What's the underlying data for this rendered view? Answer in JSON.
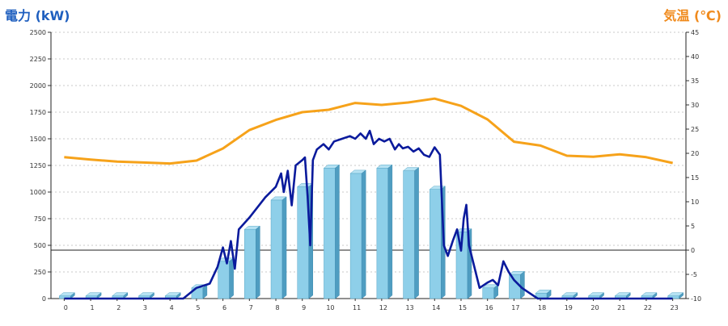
{
  "chart_data": {
    "type": "bar+line",
    "left_axis_label": "電力 (kW)",
    "right_axis_label": "気温 (℃)",
    "categories": [
      "0",
      "1",
      "2",
      "3",
      "4",
      "5",
      "6",
      "7",
      "8",
      "9",
      "10",
      "11",
      "12",
      "13",
      "14",
      "15",
      "16",
      "17",
      "18",
      "19",
      "20",
      "21",
      "22",
      "23"
    ],
    "y_left": {
      "min": 0,
      "max": 2500,
      "ticks": [
        0,
        250,
        500,
        750,
        1000,
        1250,
        1500,
        1750,
        2000,
        2250,
        2500
      ]
    },
    "y_right": {
      "min": -10,
      "max": 45,
      "ticks": [
        -10,
        -5,
        0,
        5,
        10,
        15,
        20,
        25,
        30,
        35,
        40,
        45
      ]
    },
    "bars": {
      "axis": "left",
      "color": "#8ecfe9",
      "values": [
        25,
        25,
        25,
        25,
        25,
        100,
        350,
        650,
        925,
        1050,
        1225,
        1175,
        1225,
        1200,
        1025,
        625,
        100,
        225,
        50,
        25,
        25,
        25,
        25,
        25
      ]
    },
    "power_line": {
      "axis": "left",
      "color": "#0a1a9c",
      "points": [
        [
          0,
          0
        ],
        [
          1,
          0
        ],
        [
          2,
          0
        ],
        [
          3,
          0
        ],
        [
          4,
          0
        ],
        [
          4.5,
          0
        ],
        [
          5,
          100
        ],
        [
          5.5,
          140
        ],
        [
          5.8,
          300
        ],
        [
          6,
          480
        ],
        [
          6.15,
          330
        ],
        [
          6.3,
          540
        ],
        [
          6.45,
          280
        ],
        [
          6.6,
          650
        ],
        [
          7,
          760
        ],
        [
          7.6,
          950
        ],
        [
          8,
          1050
        ],
        [
          8.2,
          1175
        ],
        [
          8.3,
          1000
        ],
        [
          8.45,
          1200
        ],
        [
          8.6,
          875
        ],
        [
          8.75,
          1250
        ],
        [
          9,
          1300
        ],
        [
          9.1,
          1325
        ],
        [
          9.2,
          960
        ],
        [
          9.3,
          500
        ],
        [
          9.4,
          1300
        ],
        [
          9.55,
          1400
        ],
        [
          9.8,
          1450
        ],
        [
          10,
          1400
        ],
        [
          10.2,
          1475
        ],
        [
          10.5,
          1500
        ],
        [
          10.8,
          1525
        ],
        [
          11,
          1500
        ],
        [
          11.2,
          1550
        ],
        [
          11.4,
          1500
        ],
        [
          11.55,
          1575
        ],
        [
          11.7,
          1450
        ],
        [
          11.9,
          1500
        ],
        [
          12.1,
          1475
        ],
        [
          12.3,
          1500
        ],
        [
          12.5,
          1400
        ],
        [
          12.65,
          1450
        ],
        [
          12.8,
          1410
        ],
        [
          13,
          1425
        ],
        [
          13.2,
          1380
        ],
        [
          13.4,
          1410
        ],
        [
          13.6,
          1350
        ],
        [
          13.8,
          1330
        ],
        [
          14,
          1420
        ],
        [
          14.2,
          1350
        ],
        [
          14.35,
          500
        ],
        [
          14.5,
          400
        ],
        [
          14.7,
          550
        ],
        [
          14.85,
          650
        ],
        [
          15,
          450
        ],
        [
          15.1,
          750
        ],
        [
          15.2,
          880
        ],
        [
          15.3,
          500
        ],
        [
          15.5,
          300
        ],
        [
          15.7,
          100
        ],
        [
          16,
          150
        ],
        [
          16.2,
          175
        ],
        [
          16.4,
          125
        ],
        [
          16.6,
          350
        ],
        [
          16.8,
          250
        ],
        [
          17,
          175
        ],
        [
          17.3,
          100
        ],
        [
          17.6,
          50
        ],
        [
          17.9,
          0
        ],
        [
          18,
          0
        ],
        [
          18.5,
          0
        ],
        [
          19,
          0
        ],
        [
          20,
          0
        ],
        [
          21,
          0
        ],
        [
          22,
          0
        ],
        [
          23,
          0
        ]
      ]
    },
    "temperature_line": {
      "axis": "right",
      "color": "#f6a21a",
      "points": [
        [
          0,
          19.2
        ],
        [
          1,
          18.7
        ],
        [
          2,
          18.3
        ],
        [
          3,
          18.1
        ],
        [
          4,
          17.9
        ],
        [
          5,
          18.5
        ],
        [
          6,
          21
        ],
        [
          7,
          24.8
        ],
        [
          8,
          26.9
        ],
        [
          9,
          28.5
        ],
        [
          10,
          29
        ],
        [
          11,
          30.4
        ],
        [
          12,
          30
        ],
        [
          13,
          30.5
        ],
        [
          14,
          31.3
        ],
        [
          15,
          29.8
        ],
        [
          16,
          27
        ],
        [
          17,
          22.4
        ],
        [
          18,
          21.6
        ],
        [
          19,
          19.5
        ],
        [
          20,
          19.3
        ],
        [
          21,
          19.8
        ],
        [
          22,
          19.2
        ],
        [
          23,
          18
        ]
      ]
    },
    "grid": "dashed-horizontal"
  }
}
